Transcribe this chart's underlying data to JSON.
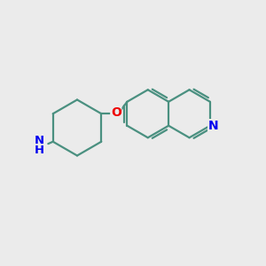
{
  "background_color": "#ebebeb",
  "bond_color": "#4a9080",
  "atom_colors": {
    "N": "#0000ee",
    "O": "#ee0000",
    "C": "#4a9080"
  },
  "figsize": [
    3.0,
    3.0
  ],
  "dpi": 100,
  "lw": 1.6,
  "font_size": 9.5
}
